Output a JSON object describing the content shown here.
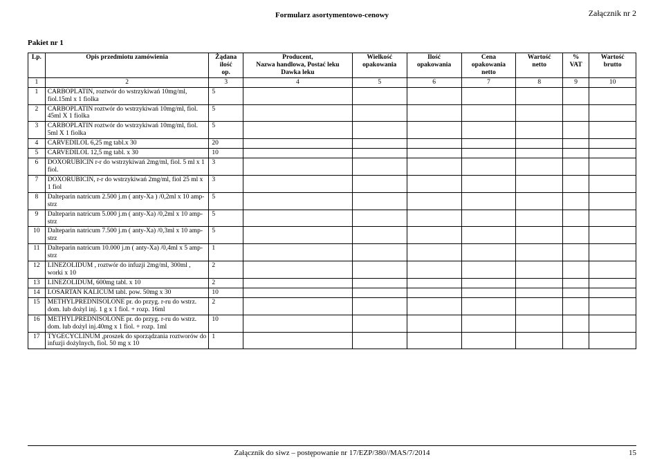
{
  "attachment_label": "Załącznik nr 2",
  "form_title": "Formularz asortymentowo-cenowy",
  "package_label": "Pakiet nr 1",
  "headers": {
    "lp": "Lp.",
    "desc": "Opis przedmiotu zamówienia",
    "qty_line1": "Żądana",
    "qty_line2": "ilość",
    "qty_line3": "op.",
    "prod_line1": "Producent,",
    "prod_line2": "Nazwa handlowa, Postać leku",
    "prod_line3": "Dawka leku",
    "size_line1": "Wielkość",
    "size_line2": "opakowania",
    "count_line1": "Ilość",
    "count_line2": "opakowania",
    "price_line1": "Cena",
    "price_line2": "opakowania",
    "price_line3": "netto",
    "netto_line1": "Wartość",
    "netto_line2": "netto",
    "vat_line1": "%",
    "vat_line2": "VAT",
    "brutto_line1": "Wartość",
    "brutto_line2": "brutto"
  },
  "numrow": [
    "1",
    "2",
    "3",
    "4",
    "5",
    "6",
    "7",
    "8",
    "9",
    "10"
  ],
  "rows": [
    {
      "lp": "1",
      "desc": "CARBOPLATIN, roztwór do wstrzykiwań 10mg/ml, fiol.15ml x 1 fiolka",
      "qty": "5"
    },
    {
      "lp": "2",
      "desc": "CARBOPLATIN roztwór do wstrzykiwań 10mg/ml, fiol. 45ml X 1 fiolka",
      "qty": "5"
    },
    {
      "lp": "3",
      "desc": "CARBOPLATIN roztwór do wstrzykiwań 10mg/ml, fiol. 5ml X 1 fiolka",
      "qty": "5"
    },
    {
      "lp": "4",
      "desc": "CARVEDILOL 6,25 mg tabl.x 30",
      "qty": "20"
    },
    {
      "lp": "5",
      "desc": "CARVEDILOL 12,5 mg tabl. x 30",
      "qty": "10"
    },
    {
      "lp": "6",
      "desc": "DOXORUBICIN  r-r do wstrzykiwań 2mg/ml, fiol. 5 ml x 1 fiol.",
      "qty": "3"
    },
    {
      "lp": "7",
      "desc": "DOXORUBICIN, r-r do  wstrzykiwań 2mg/ml, fiol 25 ml x 1 fiol",
      "qty": "3"
    },
    {
      "lp": "8",
      "desc": "Dalteparin natricum  2.500 j.m ( anty-Xa ) /0,2ml x 10 amp-strz",
      "qty": "5"
    },
    {
      "lp": "9",
      "desc": "Dalteparin natricum  5.000 j.m ( anty-Xa) /0,2ml x 10 amp-strz",
      "qty": "5"
    },
    {
      "lp": "10",
      "desc": "Dalteparin natricum  7.500 j.m ( anty-Xa) /0,3ml x 10 amp-strz",
      "qty": "5"
    },
    {
      "lp": "11",
      "desc": "Dalteparin natricum  10.000 j.m ( anty-Xa) /0,4ml x 5 amp-strz",
      "qty": "1"
    },
    {
      "lp": "12",
      "desc": "LINEZOLIDUM , roztwór do infuzji 2mg/ml, 300ml , worki x 10",
      "qty": "2"
    },
    {
      "lp": "13",
      "desc": "LINEZOLIDUM, 600mg tabl. x 10",
      "qty": "2"
    },
    {
      "lp": "14",
      "desc": "LOSARTAN KALICUM tabl. pow. 50mg x 30",
      "qty": "10"
    },
    {
      "lp": "15",
      "desc": "METHYLPREDNISOLONE  pr. do przyg. r-ru do wstrz. dom.  lub dożyl  inj. 1 g x 1 fiol. + rozp. 16ml",
      "qty": "2"
    },
    {
      "lp": "16",
      "desc": "METHYLPREDNISOLONE  pr. do przyg. r-ru do wstrz. dom.  lub dożyl inj.40mg x 1 fiol. + rozp. 1ml",
      "qty": "10"
    },
    {
      "lp": "17",
      "desc": "TYGECYCLINUM ,proszek do sporządzania roztworów do infuzji dożylnych, fiol. 50 mg x 10",
      "qty": "1"
    }
  ],
  "footer_text": "Załącznik do siwz – postępowanie nr  17/EZP/380//MAS/7/2014",
  "page_number": "15"
}
